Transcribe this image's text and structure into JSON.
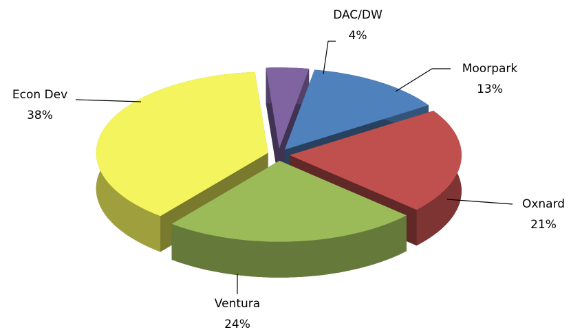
{
  "chart_data": {
    "type": "pie",
    "categories": [
      "Moorpark",
      "Oxnard",
      "Ventura",
      "Econ Dev",
      "DAC/DW"
    ],
    "values": [
      13,
      21,
      24,
      38,
      4
    ],
    "value_labels": [
      "13%",
      "21%",
      "24%",
      "38%",
      "4%"
    ],
    "colors": [
      "#4f81bd",
      "#c0504d",
      "#9bbb59",
      "#f4f45e",
      "#8064a2"
    ]
  }
}
